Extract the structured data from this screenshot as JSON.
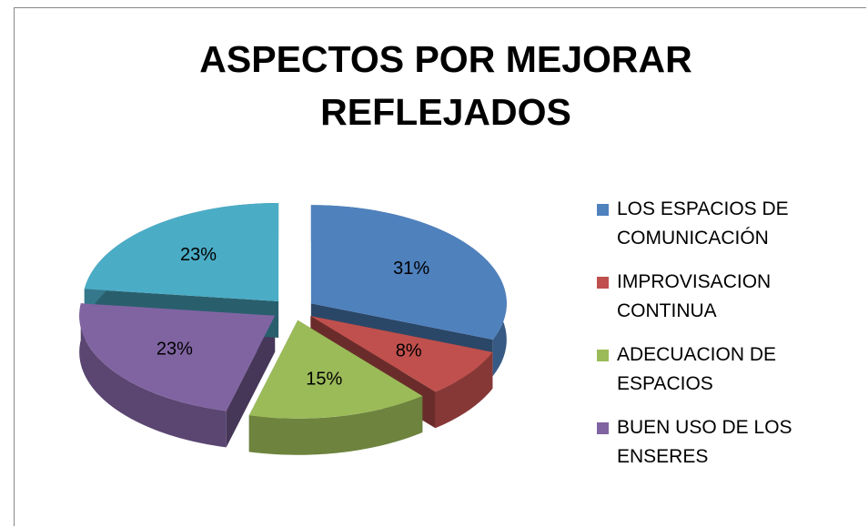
{
  "chart_data": {
    "type": "pie",
    "title": "ASPECTOS POR MEJORAR REFLEJADOS",
    "categories": [
      "LOS ESPACIOS DE COMUNICACIÓN",
      "IMPROVISACION CONTINUA",
      "ADECUACION DE ESPACIOS",
      "BUEN USO DE LOS ENSERES",
      null
    ],
    "values": [
      31,
      8,
      15,
      23,
      23
    ],
    "value_labels": [
      "31%",
      "8%",
      "15%",
      "23%",
      "23%"
    ],
    "colors": [
      "#4f81bd",
      "#c0504d",
      "#9bbb59",
      "#8064a2",
      "#4bacc6"
    ],
    "legend": "right"
  }
}
